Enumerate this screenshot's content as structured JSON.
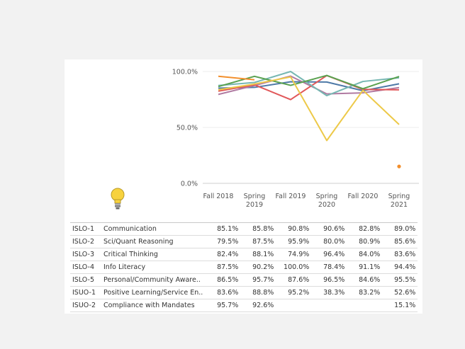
{
  "chart_data": {
    "type": "line",
    "title": "",
    "xlabel": "",
    "ylabel": "",
    "ylim": [
      0,
      100
    ],
    "y_ticks": [
      "100.0%",
      "50.0%",
      "0.0%"
    ],
    "categories": [
      "Fall 2018",
      "Spring 2019",
      "Fall 2019",
      "Spring 2020",
      "Fall 2020",
      "Spring 2021"
    ],
    "category_lines": [
      [
        "Fall 2018"
      ],
      [
        "Spring",
        "2019"
      ],
      [
        "Fall 2019"
      ],
      [
        "Spring",
        "2020"
      ],
      [
        "Fall 2020"
      ],
      [
        "Spring",
        "2021"
      ]
    ],
    "series": [
      {
        "code": "ISLO-1",
        "label": "Communication",
        "color": "#4e79a7",
        "values": [
          85.1,
          85.8,
          90.8,
          90.6,
          82.8,
          89.0
        ],
        "display": [
          "85.1%",
          "85.8%",
          "90.8%",
          "90.6%",
          "82.8%",
          "89.0%"
        ]
      },
      {
        "code": "ISLO-2",
        "label": "Sci/Quant Reasoning",
        "color": "#b07aa1",
        "values": [
          79.5,
          87.5,
          95.9,
          80.0,
          80.9,
          85.6
        ],
        "display": [
          "79.5%",
          "87.5%",
          "95.9%",
          "80.0%",
          "80.9%",
          "85.6%"
        ]
      },
      {
        "code": "ISLO-3",
        "label": "Critical Thinking",
        "color": "#e15759",
        "values": [
          82.4,
          88.1,
          74.9,
          96.4,
          84.0,
          83.6
        ],
        "display": [
          "82.4%",
          "88.1%",
          "74.9%",
          "96.4%",
          "84.0%",
          "83.6%"
        ]
      },
      {
        "code": "ISLO-4",
        "label": "Info Literacy",
        "color": "#76b7b2",
        "values": [
          87.5,
          90.2,
          100.0,
          78.4,
          91.1,
          94.4
        ],
        "display": [
          "87.5%",
          "90.2%",
          "100.0%",
          "78.4%",
          "91.1%",
          "94.4%"
        ]
      },
      {
        "code": "ISLO-5",
        "label": "Personal/Community Aware..",
        "color": "#59a14f",
        "values": [
          86.5,
          95.7,
          87.6,
          96.5,
          84.6,
          95.5
        ],
        "display": [
          "86.5%",
          "95.7%",
          "87.6%",
          "96.5%",
          "84.6%",
          "95.5%"
        ]
      },
      {
        "code": "ISUO-1",
        "label": "Positive Learning/Service En..",
        "color": "#edc948",
        "values": [
          83.6,
          88.8,
          95.2,
          38.3,
          83.2,
          52.6
        ],
        "display": [
          "83.6%",
          "88.8%",
          "95.2%",
          "38.3%",
          "83.2%",
          "52.6%"
        ]
      },
      {
        "code": "ISUO-2",
        "label": "Compliance with Mandates",
        "color": "#f28e2b",
        "values": [
          95.7,
          92.6,
          null,
          null,
          null,
          15.1
        ],
        "display": [
          "95.7%",
          "92.6%",
          "",
          "",
          "",
          "15.1%"
        ]
      }
    ]
  },
  "lightbulb_icon": "lightbulb-icon"
}
